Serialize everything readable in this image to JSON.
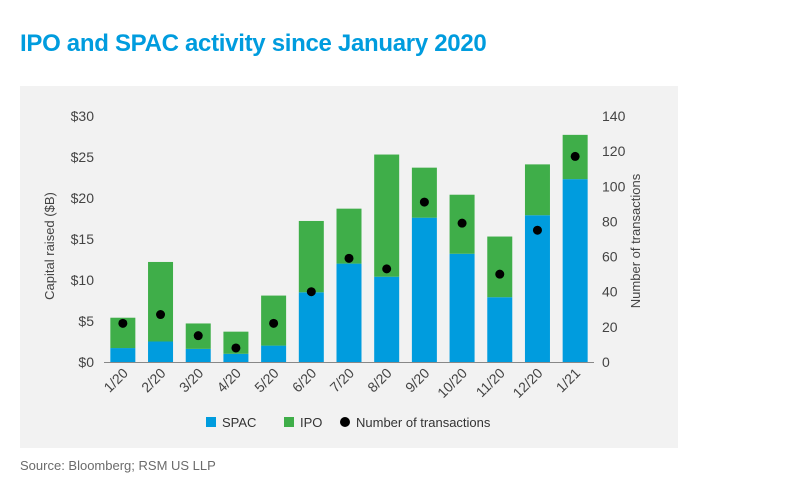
{
  "title": "IPO and SPAC activity since January 2020",
  "source": "Source: Bloomberg; RSM US LLP",
  "chart_data": {
    "type": "bar",
    "stacked": true,
    "categories": [
      "1/20",
      "2/20",
      "3/20",
      "4/20",
      "5/20",
      "6/20",
      "7/20",
      "8/20",
      "9/20",
      "10/20",
      "11/20",
      "12/20",
      "1/21"
    ],
    "series": [
      {
        "name": "SPAC",
        "axis": "left",
        "color": "#009cde",
        "values": [
          1.7,
          2.5,
          1.6,
          1.0,
          2.0,
          8.5,
          12.0,
          10.4,
          17.6,
          13.2,
          7.9,
          17.9,
          22.3
        ]
      },
      {
        "name": "IPO",
        "axis": "left",
        "color": "#3fae49",
        "values": [
          3.7,
          9.7,
          3.1,
          2.7,
          6.1,
          8.7,
          6.7,
          14.9,
          6.1,
          7.2,
          7.4,
          6.2,
          5.4
        ]
      },
      {
        "name": "Number of transactions",
        "axis": "right",
        "type": "scatter",
        "color": "#000000",
        "values": [
          22,
          27,
          15,
          8,
          22,
          40,
          59,
          53,
          91,
          79,
          50,
          75,
          117
        ]
      }
    ],
    "ylabel": "Capital raised ($B)",
    "y2label": "Number of transactions",
    "ylim": [
      0,
      30
    ],
    "y2lim": [
      0,
      140
    ],
    "yticks": [
      "$0",
      "$5",
      "$10",
      "$15",
      "$20",
      "$25",
      "$30"
    ],
    "y2ticks": [
      "0",
      "20",
      "40",
      "60",
      "80",
      "100",
      "120",
      "140"
    ],
    "legend_position": "bottom",
    "grid": false
  }
}
